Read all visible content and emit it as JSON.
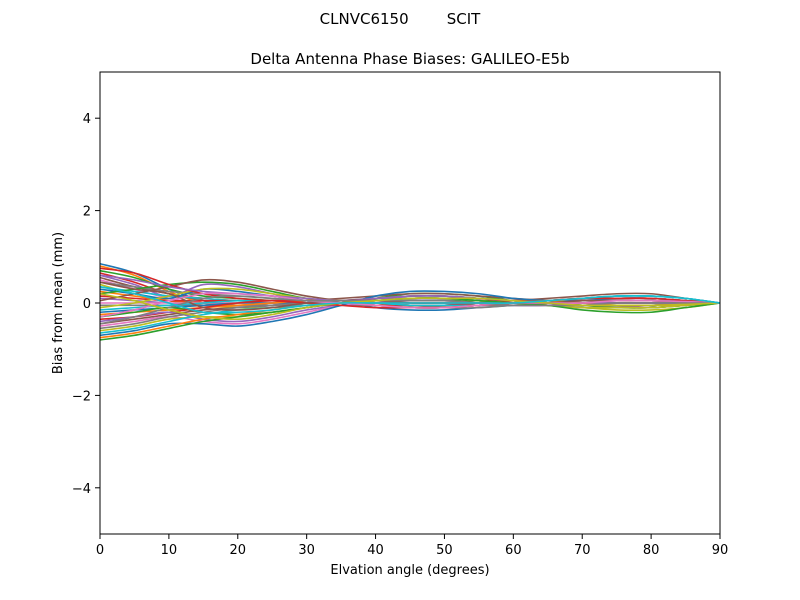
{
  "chart_data": {
    "type": "line",
    "suptitle": "CLNVC6150        SCIT",
    "title": "Delta Antenna Phase Biases: GALILEO-E5b",
    "xlabel": "Elvation angle (degrees)",
    "ylabel": "Bias from mean (mm)",
    "xlim": [
      0,
      90
    ],
    "ylim": [
      -5,
      5
    ],
    "xticks": [
      0,
      10,
      20,
      30,
      40,
      50,
      60,
      70,
      80,
      90
    ],
    "yticks": [
      -4,
      -2,
      0,
      2,
      4
    ],
    "ytick_labels": [
      "−4",
      "−2",
      "0",
      "2",
      "4"
    ],
    "grid": false,
    "legend": "none",
    "x": [
      0,
      5,
      10,
      15,
      20,
      25,
      30,
      35,
      40,
      45,
      50,
      55,
      60,
      65,
      70,
      75,
      80,
      85,
      90
    ],
    "series": [
      {
        "values": [
          0.85,
          0.65,
          0.3,
          0.05,
          -0.1,
          -0.05,
          0.05,
          0.05,
          -0.1,
          -0.15,
          -0.15,
          -0.1,
          -0.05,
          0.0,
          0.1,
          0.15,
          0.15,
          0.1,
          0.0
        ]
      },
      {
        "values": [
          0.8,
          0.6,
          0.25,
          0.0,
          -0.05,
          0.0,
          0.05,
          0.0,
          -0.05,
          -0.1,
          -0.1,
          -0.05,
          0.0,
          0.05,
          0.05,
          0.1,
          0.1,
          0.05,
          0.0
        ]
      },
      {
        "values": [
          0.7,
          0.55,
          0.3,
          0.15,
          0.1,
          0.05,
          0.0,
          0.0,
          0.1,
          0.2,
          0.2,
          0.15,
          0.05,
          0.0,
          -0.05,
          -0.1,
          -0.1,
          -0.05,
          0.0
        ]
      },
      {
        "values": [
          0.65,
          0.45,
          0.2,
          0.1,
          0.05,
          0.05,
          0.05,
          0.05,
          0.05,
          0.05,
          0.05,
          0.05,
          0.05,
          0.05,
          0.05,
          0.05,
          0.05,
          0.03,
          0.0
        ]
      },
      {
        "values": [
          0.6,
          0.4,
          0.15,
          0.4,
          0.35,
          0.2,
          0.05,
          0.0,
          0.05,
          0.1,
          0.1,
          0.05,
          0.0,
          -0.05,
          -0.1,
          -0.1,
          -0.05,
          -0.03,
          0.0
        ]
      },
      {
        "values": [
          0.55,
          0.35,
          0.2,
          0.05,
          -0.05,
          0.0,
          0.05,
          0.1,
          0.15,
          0.2,
          0.2,
          0.15,
          0.1,
          0.05,
          0.0,
          0.0,
          0.0,
          0.0,
          0.0
        ]
      },
      {
        "values": [
          0.5,
          0.3,
          0.1,
          0.0,
          -0.1,
          -0.05,
          0.0,
          0.05,
          0.0,
          -0.05,
          -0.05,
          -0.05,
          -0.05,
          -0.05,
          -0.05,
          -0.05,
          -0.05,
          -0.03,
          0.0
        ]
      },
      {
        "values": [
          0.45,
          0.35,
          0.25,
          0.2,
          0.15,
          0.1,
          0.05,
          0.0,
          -0.05,
          -0.05,
          -0.1,
          -0.1,
          -0.05,
          0.0,
          0.05,
          0.1,
          0.1,
          0.05,
          0.0
        ]
      },
      {
        "values": [
          0.4,
          0.2,
          0.05,
          -0.05,
          -0.1,
          -0.1,
          -0.05,
          0.0,
          0.05,
          0.1,
          0.1,
          0.05,
          0.0,
          0.0,
          0.05,
          0.1,
          0.1,
          0.05,
          0.0
        ]
      },
      {
        "values": [
          0.35,
          0.25,
          0.15,
          0.1,
          0.05,
          0.05,
          0.05,
          0.05,
          0.0,
          -0.05,
          -0.05,
          0.0,
          0.05,
          0.05,
          0.0,
          -0.05,
          -0.05,
          -0.03,
          0.0
        ]
      },
      {
        "values": [
          0.3,
          0.2,
          0.1,
          0.3,
          0.25,
          0.15,
          0.05,
          0.0,
          -0.05,
          -0.1,
          -0.1,
          -0.05,
          0.0,
          0.05,
          0.1,
          0.1,
          0.1,
          0.05,
          0.0
        ]
      },
      {
        "values": [
          0.25,
          0.15,
          0.05,
          0.0,
          0.0,
          0.0,
          0.0,
          0.0,
          0.0,
          0.0,
          0.0,
          0.0,
          0.0,
          0.0,
          0.0,
          0.0,
          0.0,
          0.0,
          0.0
        ]
      },
      {
        "values": [
          0.2,
          0.3,
          0.4,
          0.45,
          0.4,
          0.25,
          0.1,
          0.05,
          0.1,
          0.15,
          0.15,
          0.1,
          0.05,
          0.0,
          -0.05,
          -0.05,
          -0.05,
          -0.03,
          0.0
        ]
      },
      {
        "values": [
          0.15,
          0.1,
          0.05,
          0.05,
          0.05,
          0.05,
          0.05,
          0.05,
          0.05,
          0.05,
          0.05,
          0.05,
          0.05,
          0.05,
          0.05,
          0.05,
          0.05,
          0.03,
          0.0
        ]
      },
      {
        "values": [
          0.1,
          0.05,
          0.0,
          -0.05,
          -0.05,
          -0.05,
          0.0,
          0.05,
          0.1,
          0.1,
          0.1,
          0.05,
          0.0,
          -0.05,
          -0.1,
          -0.1,
          -0.1,
          -0.05,
          0.0
        ]
      },
      {
        "values": [
          0.05,
          0.2,
          0.35,
          0.5,
          0.45,
          0.3,
          0.15,
          0.05,
          0.0,
          -0.05,
          -0.05,
          0.0,
          0.05,
          0.1,
          0.15,
          0.2,
          0.2,
          0.1,
          0.0
        ]
      },
      {
        "values": [
          0.0,
          0.0,
          0.0,
          0.0,
          0.0,
          0.0,
          0.0,
          0.0,
          0.0,
          0.0,
          0.0,
          0.0,
          0.0,
          0.0,
          0.0,
          0.0,
          0.0,
          0.0,
          0.0
        ]
      },
      {
        "values": [
          -0.05,
          -0.05,
          -0.05,
          -0.05,
          -0.05,
          -0.05,
          -0.05,
          -0.05,
          -0.05,
          -0.05,
          -0.05,
          -0.05,
          -0.05,
          -0.05,
          -0.05,
          -0.05,
          -0.05,
          -0.03,
          0.0
        ]
      },
      {
        "values": [
          -0.1,
          0.0,
          0.15,
          0.3,
          0.3,
          0.2,
          0.1,
          0.05,
          0.05,
          0.1,
          0.1,
          0.05,
          0.0,
          -0.05,
          -0.1,
          -0.15,
          -0.15,
          -0.1,
          0.0
        ]
      },
      {
        "values": [
          -0.15,
          -0.1,
          -0.05,
          0.0,
          0.05,
          0.05,
          0.05,
          0.0,
          -0.05,
          -0.1,
          -0.1,
          -0.05,
          0.0,
          0.05,
          0.05,
          0.05,
          0.05,
          0.03,
          0.0
        ]
      },
      {
        "values": [
          -0.2,
          -0.15,
          -0.1,
          -0.05,
          0.0,
          0.0,
          0.0,
          0.0,
          0.05,
          0.1,
          0.1,
          0.1,
          0.05,
          0.0,
          0.0,
          0.0,
          0.0,
          0.0,
          0.0
        ]
      },
      {
        "values": [
          -0.25,
          -0.2,
          -0.15,
          -0.1,
          -0.05,
          0.0,
          0.05,
          0.05,
          0.0,
          -0.05,
          -0.05,
          -0.05,
          0.0,
          0.05,
          0.1,
          0.1,
          0.1,
          0.05,
          0.0
        ]
      },
      {
        "values": [
          -0.3,
          -0.2,
          -0.1,
          -0.2,
          -0.25,
          -0.2,
          -0.1,
          0.0,
          0.05,
          0.05,
          0.05,
          0.05,
          0.0,
          -0.05,
          -0.1,
          -0.1,
          -0.1,
          -0.05,
          0.0
        ]
      },
      {
        "values": [
          -0.35,
          -0.3,
          -0.2,
          -0.1,
          0.0,
          0.05,
          0.05,
          0.0,
          -0.05,
          -0.05,
          -0.05,
          0.0,
          0.05,
          0.05,
          0.05,
          0.05,
          0.05,
          0.03,
          0.0
        ]
      },
      {
        "values": [
          -0.4,
          -0.3,
          -0.2,
          -0.35,
          -0.4,
          -0.3,
          -0.15,
          -0.05,
          0.0,
          0.05,
          0.05,
          0.0,
          -0.05,
          -0.05,
          0.0,
          0.05,
          0.05,
          0.03,
          0.0
        ]
      },
      {
        "values": [
          -0.45,
          -0.35,
          -0.25,
          -0.15,
          -0.1,
          -0.05,
          0.0,
          0.05,
          0.1,
          0.15,
          0.15,
          0.1,
          0.05,
          0.0,
          -0.05,
          -0.05,
          -0.05,
          -0.03,
          0.0
        ]
      },
      {
        "values": [
          -0.5,
          -0.4,
          -0.3,
          -0.4,
          -0.45,
          -0.35,
          -0.2,
          -0.05,
          0.05,
          0.1,
          0.1,
          0.05,
          0.0,
          0.0,
          0.05,
          0.1,
          0.1,
          0.05,
          0.0
        ]
      },
      {
        "values": [
          -0.55,
          -0.45,
          -0.3,
          -0.2,
          -0.1,
          -0.05,
          0.0,
          0.0,
          0.0,
          0.0,
          0.0,
          0.0,
          0.0,
          0.0,
          0.0,
          0.0,
          0.0,
          0.0,
          0.0
        ]
      },
      {
        "values": [
          -0.6,
          -0.5,
          -0.35,
          -0.3,
          -0.3,
          -0.2,
          -0.1,
          0.0,
          0.05,
          0.1,
          0.1,
          0.05,
          0.0,
          -0.05,
          -0.1,
          -0.1,
          -0.1,
          -0.05,
          0.0
        ]
      },
      {
        "values": [
          -0.65,
          -0.55,
          -0.4,
          -0.25,
          -0.15,
          -0.1,
          -0.05,
          0.0,
          0.0,
          -0.05,
          -0.05,
          -0.05,
          0.0,
          0.05,
          0.1,
          0.15,
          0.15,
          0.1,
          0.0
        ]
      },
      {
        "values": [
          -0.7,
          -0.6,
          -0.45,
          -0.45,
          -0.5,
          -0.4,
          -0.25,
          -0.05,
          0.15,
          0.25,
          0.25,
          0.2,
          0.1,
          0.05,
          0.05,
          0.1,
          0.1,
          0.05,
          0.0
        ]
      },
      {
        "values": [
          -0.75,
          -0.65,
          -0.5,
          -0.35,
          -0.25,
          -0.15,
          -0.05,
          0.0,
          -0.05,
          -0.1,
          -0.1,
          -0.05,
          0.0,
          0.05,
          0.0,
          -0.05,
          -0.05,
          -0.03,
          0.0
        ]
      },
      {
        "values": [
          -0.8,
          -0.7,
          -0.55,
          -0.4,
          -0.3,
          -0.2,
          -0.1,
          0.0,
          0.05,
          0.1,
          0.1,
          0.05,
          0.0,
          -0.05,
          -0.15,
          -0.2,
          -0.2,
          -0.1,
          0.0
        ]
      },
      {
        "values": [
          0.75,
          0.65,
          0.4,
          0.2,
          0.1,
          0.05,
          0.0,
          -0.05,
          -0.1,
          -0.1,
          -0.1,
          -0.05,
          0.0,
          0.05,
          0.1,
          0.1,
          0.1,
          0.05,
          0.0
        ]
      },
      {
        "values": [
          0.6,
          0.5,
          0.35,
          0.25,
          0.2,
          0.15,
          0.1,
          0.05,
          0.1,
          0.15,
          0.15,
          0.1,
          0.05,
          0.0,
          0.0,
          0.0,
          0.0,
          0.0,
          0.0
        ]
      },
      {
        "values": [
          0.45,
          0.3,
          0.2,
          -0.1,
          -0.15,
          -0.1,
          0.0,
          0.05,
          0.05,
          0.0,
          0.0,
          0.0,
          0.0,
          0.0,
          0.05,
          0.05,
          0.05,
          0.03,
          0.0
        ]
      },
      {
        "values": [
          -0.3,
          -0.15,
          0.05,
          0.2,
          0.2,
          0.15,
          0.05,
          0.0,
          -0.05,
          -0.1,
          -0.1,
          -0.05,
          0.0,
          0.0,
          0.0,
          0.05,
          0.05,
          0.03,
          0.0
        ]
      },
      {
        "values": [
          -0.45,
          -0.3,
          -0.1,
          0.1,
          0.15,
          0.1,
          0.05,
          0.05,
          0.05,
          0.05,
          0.05,
          0.0,
          -0.05,
          -0.05,
          -0.05,
          0.0,
          0.0,
          0.0,
          0.0
        ]
      },
      {
        "values": [
          0.2,
          0.05,
          -0.15,
          -0.3,
          -0.35,
          -0.25,
          -0.1,
          0.0,
          0.05,
          0.1,
          0.1,
          0.1,
          0.05,
          0.0,
          -0.05,
          -0.05,
          -0.05,
          -0.03,
          0.0
        ]
      },
      {
        "values": [
          0.35,
          0.2,
          0.0,
          -0.2,
          -0.2,
          -0.15,
          -0.05,
          0.0,
          0.0,
          0.0,
          0.0,
          0.0,
          0.0,
          0.05,
          0.1,
          0.15,
          0.15,
          0.1,
          0.0
        ]
      }
    ],
    "colors": [
      "#1f77b4",
      "#ff7f0e",
      "#2ca02c",
      "#d62728",
      "#9467bd",
      "#8c564b",
      "#e377c2",
      "#7f7f7f",
      "#bcbd22",
      "#17becf"
    ]
  }
}
